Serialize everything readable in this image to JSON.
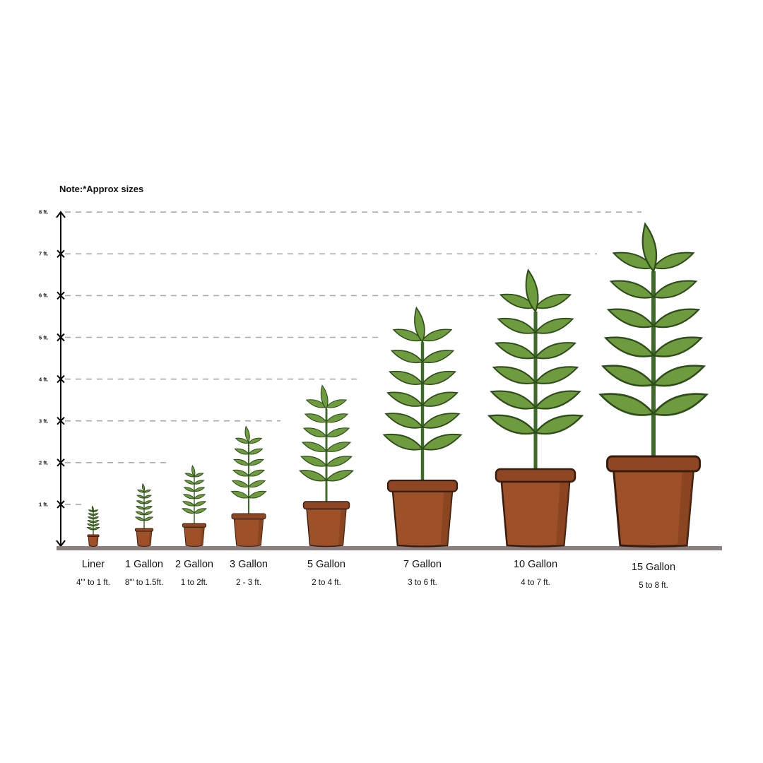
{
  "note": "Note:*Approx sizes",
  "scale": {
    "ticks": [
      "1 ft.",
      "2 ft.",
      "3 ft.",
      "4 ft.",
      "5 ft.",
      "6 ft.",
      "7 ft.",
      "8 ft."
    ]
  },
  "pots": [
    {
      "name": "Liner",
      "range": "4\"' to 1 ft."
    },
    {
      "name": "1 Gallon",
      "range": "8\"' to 1.5ft."
    },
    {
      "name": "2 Gallon",
      "range": "1 to 2ft."
    },
    {
      "name": "3 Gallon",
      "range": "2 - 3 ft."
    },
    {
      "name": "5 Gallon",
      "range": "2 to 4 ft."
    },
    {
      "name": "7 Gallon",
      "range": "3 to 6 ft."
    },
    {
      "name": "10 Gallon",
      "range": "4 to 7 ft."
    },
    {
      "name": "15 Gallon",
      "range": "5 to 8 ft."
    }
  ],
  "colors": {
    "leaf": "#6f9b3f",
    "leaf_outline": "#2e4d1b",
    "stem": "#3e6a2a",
    "pot": "#9e5029",
    "pot_rim": "#8e4624",
    "pot_outline": "#3a1c0d",
    "ground": "#8c7f7f",
    "dash": "#aaaaaa"
  }
}
